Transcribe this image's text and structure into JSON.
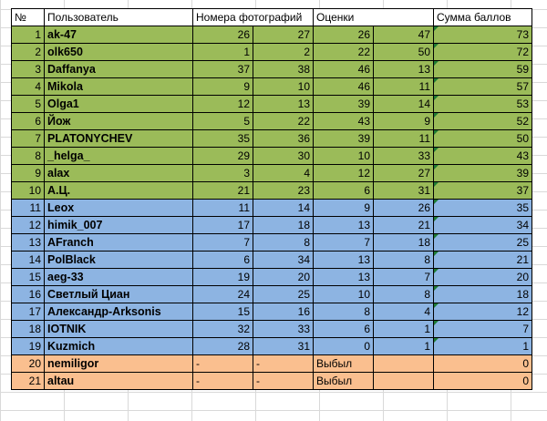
{
  "sheet": {
    "headers": {
      "num": "№",
      "user": "Пользователь",
      "photos": "Номера фотографий",
      "scores": "Оценки",
      "total": "Сумма баллов"
    },
    "colors": {
      "green": "#9bbb59",
      "blue": "#8db4e2",
      "orange": "#fabf8f"
    },
    "rows": [
      {
        "n": "1",
        "user": "ak-47",
        "p1": "26",
        "p2": "27",
        "s1": "26",
        "s2": "47",
        "total": "73",
        "band": "g"
      },
      {
        "n": "2",
        "user": "olk650",
        "p1": "1",
        "p2": "2",
        "s1": "22",
        "s2": "50",
        "total": "72",
        "band": "g"
      },
      {
        "n": "3",
        "user": "Daffanya",
        "p1": "37",
        "p2": "38",
        "s1": "46",
        "s2": "13",
        "total": "59",
        "band": "g"
      },
      {
        "n": "4",
        "user": "Mikola",
        "p1": "9",
        "p2": "10",
        "s1": "46",
        "s2": "11",
        "total": "57",
        "band": "g"
      },
      {
        "n": "5",
        "user": "Olga1",
        "p1": "12",
        "p2": "13",
        "s1": "39",
        "s2": "14",
        "total": "53",
        "band": "g"
      },
      {
        "n": "6",
        "user": "Йож",
        "p1": "5",
        "p2": "22",
        "s1": "43",
        "s2": "9",
        "total": "52",
        "band": "g"
      },
      {
        "n": "7",
        "user": "PLATONYCHEV",
        "p1": "35",
        "p2": "36",
        "s1": "39",
        "s2": "11",
        "total": "50",
        "band": "g"
      },
      {
        "n": "8",
        "user": "_helga_",
        "p1": "29",
        "p2": "30",
        "s1": "10",
        "s2": "33",
        "total": "43",
        "band": "g"
      },
      {
        "n": "9",
        "user": "alax",
        "p1": "3",
        "p2": "4",
        "s1": "12",
        "s2": "27",
        "total": "39",
        "band": "g"
      },
      {
        "n": "10",
        "user": "А.Ц.",
        "p1": "21",
        "p2": "23",
        "s1": "6",
        "s2": "31",
        "total": "37",
        "band": "g"
      },
      {
        "n": "11",
        "user": "Leox",
        "p1": "11",
        "p2": "14",
        "s1": "9",
        "s2": "26",
        "total": "35",
        "band": "b"
      },
      {
        "n": "12",
        "user": "himik_007",
        "p1": "17",
        "p2": "18",
        "s1": "13",
        "s2": "21",
        "total": "34",
        "band": "b"
      },
      {
        "n": "13",
        "user": "AFranch",
        "p1": "7",
        "p2": "8",
        "s1": "7",
        "s2": "18",
        "total": "25",
        "band": "b"
      },
      {
        "n": "14",
        "user": "PolBlack",
        "p1": "6",
        "p2": "34",
        "s1": "13",
        "s2": "8",
        "total": "21",
        "band": "b"
      },
      {
        "n": "15",
        "user": "aeg-33",
        "p1": "19",
        "p2": "20",
        "s1": "13",
        "s2": "7",
        "total": "20",
        "band": "b"
      },
      {
        "n": "16",
        "user": "Светлый Циан",
        "p1": "24",
        "p2": "25",
        "s1": "10",
        "s2": "8",
        "total": "18",
        "band": "b"
      },
      {
        "n": "17",
        "user": "Александр-Arksonis",
        "p1": "15",
        "p2": "16",
        "s1": "8",
        "s2": "4",
        "total": "12",
        "band": "b"
      },
      {
        "n": "18",
        "user": "IOTNIK",
        "p1": "32",
        "p2": "33",
        "s1": "6",
        "s2": "1",
        "total": "7",
        "band": "b"
      },
      {
        "n": "19",
        "user": "Kuzmich",
        "p1": "28",
        "p2": "31",
        "s1": "0",
        "s2": "1",
        "total": "1",
        "band": "b"
      },
      {
        "n": "20",
        "user": "nemiligor",
        "p1": "-",
        "p2": "-",
        "s1": "Выбыл",
        "s2": "",
        "total": "0",
        "band": "o"
      },
      {
        "n": "21",
        "user": "altau",
        "p1": "-",
        "p2": "-",
        "s1": "Выбыл",
        "s2": "",
        "total": "0",
        "band": "o"
      }
    ]
  }
}
